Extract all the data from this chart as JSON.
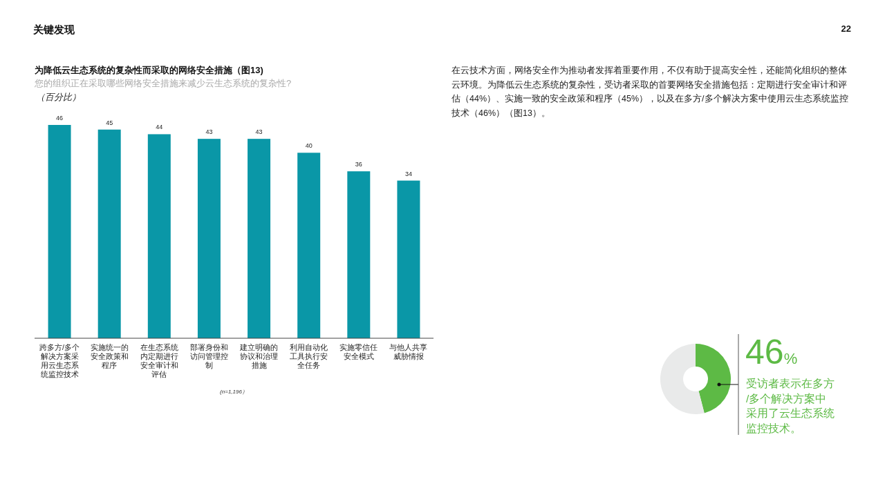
{
  "chart_data": [
    {
      "type": "bar",
      "title": "为降低云生态系统的复杂性而采取的网络安全措施（图13)",
      "subtitle": "您的组织正在采取哪些网络安全措施来减少云生态系统的复杂性?",
      "ylabel": "（百分比）",
      "categories": [
        "跨多方/多个解决方案采用云生态系统监控技术",
        "实施统一的安全政策和程序",
        "在生态系统内定期进行安全审计和评估",
        "部署身份和访问管理控制",
        "建立明确的协议和治理措施",
        "利用自动化工具执行安全任务",
        "实施零信任安全模式",
        "与他人共享威胁情报"
      ],
      "values": [
        46,
        45,
        44,
        43,
        43,
        40,
        36,
        34
      ],
      "color": "#0a97a7",
      "data_labels": true,
      "annotations": [
        "(n=1,196）"
      ]
    },
    {
      "type": "donut",
      "categories": [
        null,
        null
      ],
      "values": [
        46,
        54
      ],
      "colors": [
        "#5dba45",
        "#e9eaea"
      ],
      "value_labels": [
        "46%",
        null
      ],
      "annotations": [
        "受访者表示在多方/多个解决方案中采用了云生态系统监控技术。"
      ]
    },
    {
      "type": "other",
      "title": "关键发现",
      "annotations": [
        "22",
        "在云技术方面，网络安全作为推动者发挥着重要作用，不仅有助于提高安全性，还能简化组织的整体云环境。为降低云生态系统的复杂性，受访者采取的首要网络安全措施包括：定期进行安全审计和评估（44%）、实施一致的安全政策和程序（45%），以及在多方/多个解决方案中使用云生态系统监控技术（46%）（图13）。"
      ]
    }
  ]
}
